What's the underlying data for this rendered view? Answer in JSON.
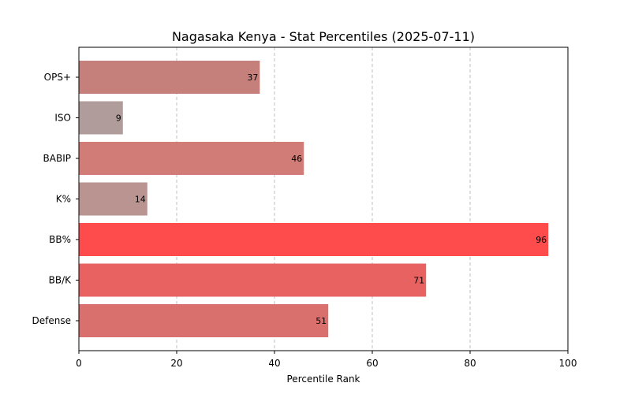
{
  "chart_data": {
    "type": "bar",
    "orientation": "horizontal",
    "title": "Nagasaka Kenya - Stat Percentiles (2025-07-11)",
    "xlabel": "Percentile Rank",
    "ylabel": "",
    "xlim": [
      0,
      100
    ],
    "xticks": [
      0,
      20,
      40,
      60,
      80,
      100
    ],
    "grid": "x-dashed",
    "categories": [
      "OPS+",
      "ISO",
      "BABIP",
      "K%",
      "BB%",
      "BB/K",
      "Defense"
    ],
    "values": [
      37,
      9,
      46,
      14,
      96,
      71,
      51
    ],
    "colors": [
      "#c5807c",
      "#b09c9b",
      "#d27c77",
      "#b99490",
      "#fe4c4c",
      "#e76261",
      "#da706e"
    ]
  }
}
